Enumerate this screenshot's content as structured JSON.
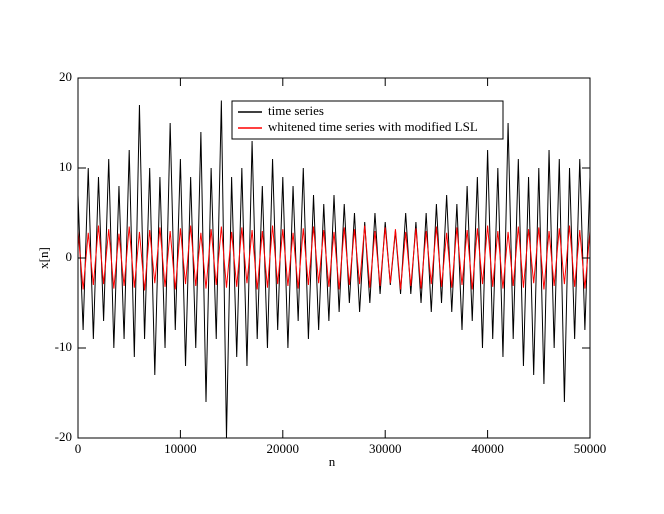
{
  "chart_data": {
    "type": "line",
    "xlabel": "n",
    "ylabel": "x[n]",
    "xlim": [
      0,
      50000
    ],
    "ylim": [
      -20,
      20
    ],
    "xticks": [
      0,
      10000,
      20000,
      30000,
      40000,
      50000
    ],
    "yticks": [
      -20,
      -10,
      0,
      10,
      20
    ],
    "legend": "top-center",
    "x": [
      0,
      500,
      1000,
      1500,
      2000,
      2500,
      3000,
      3500,
      4000,
      4500,
      5000,
      5500,
      6000,
      6500,
      7000,
      7500,
      8000,
      8500,
      9000,
      9500,
      10000,
      10500,
      11000,
      11500,
      12000,
      12500,
      13000,
      13500,
      14000,
      14500,
      15000,
      15500,
      16000,
      16500,
      17000,
      17500,
      18000,
      18500,
      19000,
      19500,
      20000,
      20500,
      21000,
      21500,
      22000,
      22500,
      23000,
      23500,
      24000,
      24500,
      25000,
      25500,
      26000,
      26500,
      27000,
      27500,
      28000,
      28500,
      29000,
      29500,
      30000,
      30500,
      31000,
      31500,
      32000,
      32500,
      33000,
      33500,
      34000,
      34500,
      35000,
      35500,
      36000,
      36500,
      37000,
      37500,
      38000,
      38500,
      39000,
      39500,
      40000,
      40500,
      41000,
      41500,
      42000,
      42500,
      43000,
      43500,
      44000,
      44500,
      45000,
      45500,
      46000,
      46500,
      47000,
      47500,
      48000,
      48500,
      49000,
      49500,
      50000
    ],
    "series": [
      {
        "name": "time series",
        "color": "#000000",
        "values": [
          7,
          -8,
          10,
          -9,
          9,
          -7,
          11,
          -10,
          8,
          -9,
          12,
          -11,
          17,
          -9,
          10,
          -13,
          9,
          -10,
          15,
          -8,
          11,
          -12,
          9,
          -10,
          14,
          -16,
          10,
          -9,
          17.5,
          -20,
          9,
          -11,
          10,
          -12,
          13,
          -9,
          8,
          -10,
          11,
          -8,
          9,
          -10,
          8,
          -7,
          10,
          -9,
          7,
          -8,
          6,
          -7,
          7,
          -6,
          6,
          -5,
          5,
          -6,
          4,
          -5,
          5,
          -4,
          4,
          -3,
          3,
          -4,
          5,
          -4,
          4,
          -5,
          5,
          -6,
          6,
          -5,
          7,
          -6,
          6,
          -8,
          8,
          -7,
          9,
          -10,
          12,
          -9,
          10,
          -11,
          15,
          -9,
          11,
          -12,
          9,
          -13,
          10,
          -14,
          12,
          -10,
          11,
          -16,
          10,
          -9,
          11,
          -8,
          9
        ]
      },
      {
        "name": "whitened time series with modified LSL",
        "color": "#ff0000",
        "values": [
          3,
          -3.5,
          2.8,
          -3,
          3.6,
          -2.9,
          3.2,
          -3.4,
          2.7,
          -3.1,
          3.5,
          -3.3,
          2.9,
          -3.6,
          3.1,
          -2.8,
          3.4,
          -3.2,
          3,
          -3.5,
          3.3,
          -2.9,
          3.6,
          -3.1,
          2.8,
          -3.4,
          3.2,
          -3,
          3.5,
          -3.3,
          2.9,
          -3.2,
          3.4,
          -2.8,
          3.1,
          -3.5,
          3,
          -3.3,
          3.6,
          -2.9,
          3.2,
          -3.1,
          2.8,
          -3.4,
          3.3,
          -3,
          3.5,
          -2.8,
          3.1,
          -3.2,
          2.9,
          -3.5,
          3.4,
          -3,
          3.2,
          -2.9,
          3.6,
          -3.3,
          3,
          -3.1,
          3.4,
          -2.8,
          3.2,
          -3.5,
          2.9,
          -3.1,
          3.3,
          -3.4,
          3,
          -2.9,
          3.5,
          -3.2,
          2.8,
          -3.3,
          3.4,
          -3,
          3.1,
          -3.5,
          3.3,
          -2.9,
          3.6,
          -3.2,
          3,
          -3.4,
          2.9,
          -3.1,
          3.5,
          -3.3,
          3.2,
          -2.8,
          3.4,
          -3.5,
          3,
          -3.1,
          3.3,
          -2.9,
          3.6,
          -3.2,
          3.1,
          -3.4,
          3
        ]
      }
    ]
  }
}
